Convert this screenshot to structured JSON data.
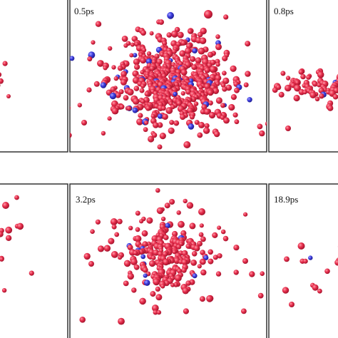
{
  "panels": [
    {
      "label": "0.5ps"
    },
    {
      "label": "0.8ps"
    },
    {
      "label": "3.2ps"
    },
    {
      "label": "18.9ps"
    }
  ]
}
